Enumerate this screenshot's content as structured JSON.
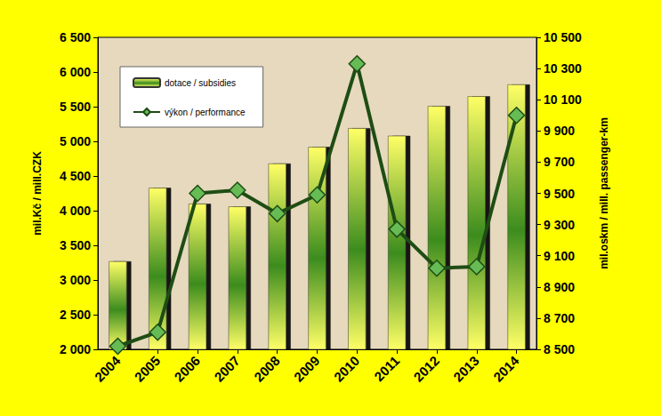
{
  "chart_data": {
    "type": "bar",
    "categories": [
      "2004",
      "2005",
      "2006",
      "2007",
      "2008",
      "2009",
      "2010",
      "2011",
      "2012",
      "2013",
      "2014"
    ],
    "y_label": "mil.Kč / mill.CZK",
    "y2_label": "mil.oskm / mill. passenger-km",
    "series": [
      {
        "name": "dotace / subsidies",
        "type": "bar",
        "color": "#3c8c1e",
        "values": [
          3270,
          4330,
          4100,
          4060,
          4680,
          4920,
          5190,
          5080,
          5510,
          5650,
          5820
        ]
      },
      {
        "name": "výkon / performance",
        "type": "line",
        "axis": "y2",
        "color": "#1e4d14",
        "marker": "diamond",
        "values": [
          8520,
          8610,
          9500,
          9520,
          9370,
          9490,
          10330,
          9270,
          9020,
          9030,
          10000
        ]
      }
    ],
    "ylim": [
      2000,
      6500
    ],
    "yticks": [
      {
        "value": 2000,
        "label": "2 000"
      },
      {
        "value": 2500,
        "label": "2 500"
      },
      {
        "value": 3000,
        "label": "3 000"
      },
      {
        "value": 3500,
        "label": "3 500"
      },
      {
        "value": 4000,
        "label": "4 000"
      },
      {
        "value": 4500,
        "label": "4 500"
      },
      {
        "value": 5000,
        "label": "5 000"
      },
      {
        "value": 5500,
        "label": "5 500"
      },
      {
        "value": 6000,
        "label": "6 000"
      },
      {
        "value": 6500,
        "label": "6 500"
      }
    ],
    "y2lim": [
      8500,
      10500
    ],
    "y2ticks": [
      {
        "value": 8500,
        "label": "8 500"
      },
      {
        "value": 8700,
        "label": "8 700"
      },
      {
        "value": 8900,
        "label": "8 900"
      },
      {
        "value": 9100,
        "label": "9 100"
      },
      {
        "value": 9300,
        "label": "9 300"
      },
      {
        "value": 9500,
        "label": "9 500"
      },
      {
        "value": 9700,
        "label": "9 700"
      },
      {
        "value": 9900,
        "label": "9 900"
      },
      {
        "value": 10100,
        "label": "10 100"
      },
      {
        "value": 10300,
        "label": "10 300"
      },
      {
        "value": 10500,
        "label": "10 500"
      }
    ],
    "grid": false,
    "legend": "top-left"
  }
}
